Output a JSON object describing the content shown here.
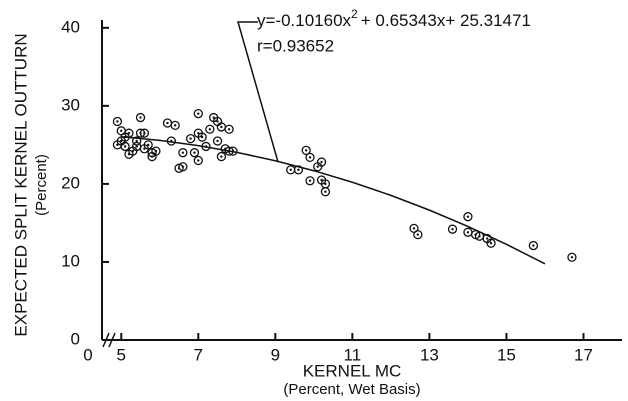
{
  "chart_data": {
    "type": "scatter",
    "y_label": "EXPECTED SPLIT KERNEL OUTTURN",
    "y_sublabel": "(Percent)",
    "x_label": "KERNEL MC",
    "x_sublabel": "(Percent, Wet Basis)",
    "x_origin_label": "0",
    "equation": {
      "before": "y=-0.10160x",
      "power": "2",
      "after": "+ 0.65343x+ 25.31471"
    },
    "r_text": "r=0.93652",
    "xlim": [
      4.5,
      18
    ],
    "xticks": [
      5,
      7,
      9,
      11,
      13,
      15,
      17
    ],
    "ylim": [
      0,
      41
    ],
    "yticks": [
      0,
      10,
      20,
      30,
      40
    ],
    "color": "#111111",
    "points": {
      "x": [
        4.9,
        5.0,
        5.0,
        4.9,
        5.1,
        5.1,
        5.2,
        5.3,
        5.2,
        5.4,
        5.5,
        5.5,
        5.6,
        5.7,
        5.8,
        5.9,
        5.8,
        5.4,
        5.6,
        6.2,
        6.4,
        6.3,
        6.5,
        6.6,
        6.6,
        6.8,
        6.9,
        7.0,
        7.0,
        7.0,
        7.1,
        7.2,
        7.3,
        7.4,
        7.5,
        7.6,
        7.5,
        7.7,
        7.8,
        7.8,
        7.9,
        7.6,
        9.4,
        9.6,
        9.8,
        9.9,
        9.9,
        10.1,
        10.2,
        10.2,
        10.3,
        10.3,
        12.6,
        12.7,
        13.6,
        14.0,
        14.0,
        14.2,
        14.3,
        14.5,
        14.6,
        15.7,
        16.7
      ],
      "values": [
        28,
        26.8,
        25.5,
        25,
        24.8,
        26,
        23.8,
        24.2,
        26.5,
        25.5,
        28.5,
        26.5,
        26.5,
        25,
        24,
        24.2,
        23.5,
        24.8,
        24.5,
        27.8,
        27.5,
        25.5,
        22,
        22.2,
        24,
        25.8,
        24,
        29,
        26.5,
        23,
        26,
        24.8,
        27,
        28.5,
        28,
        27.3,
        25.5,
        24.5,
        24.2,
        27,
        24.2,
        23.5,
        21.8,
        21.8,
        24.3,
        23.4,
        20.4,
        22.2,
        22.8,
        20.5,
        20,
        19,
        14.3,
        13.5,
        14.2,
        15.8,
        13.8,
        13.5,
        13.3,
        13,
        12.4,
        12.1,
        10.6
      ]
    },
    "fit": {
      "x": [
        5,
        6,
        7,
        8,
        9,
        10,
        11,
        12,
        13,
        14,
        15,
        16
      ],
      "values": [
        26.04,
        25.58,
        24.91,
        24.04,
        22.97,
        21.69,
        20.21,
        18.53,
        16.64,
        14.55,
        12.26,
        9.76
      ]
    }
  }
}
